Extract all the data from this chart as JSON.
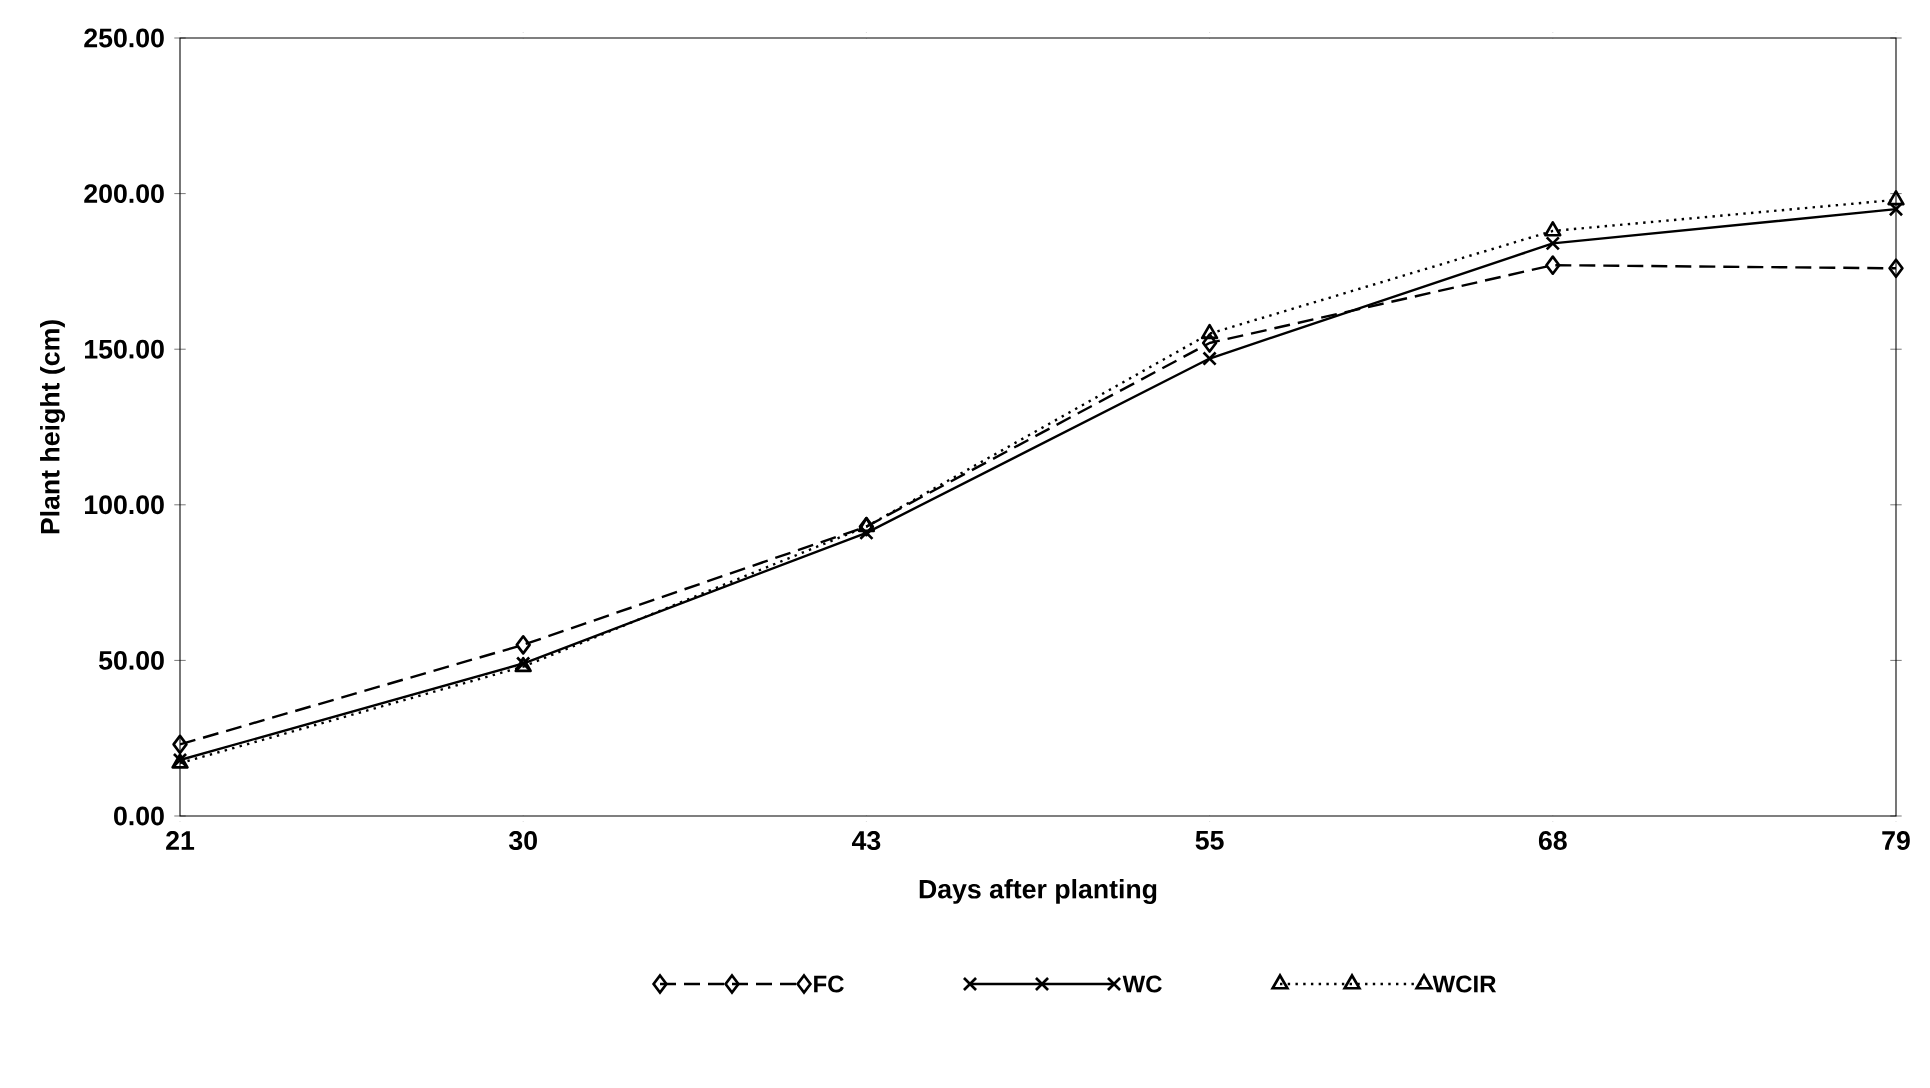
{
  "chart_data": {
    "type": "line",
    "xlabel": "Days after planting",
    "ylabel": "Plant height (cm)",
    "categories": [
      "21",
      "30",
      "43",
      "55",
      "68",
      "79"
    ],
    "series": [
      {
        "name": "FC",
        "color": "#000000",
        "marker": "diamond",
        "line_style": "dashed",
        "values": [
          23,
          55,
          93,
          152,
          177,
          176
        ]
      },
      {
        "name": "WC",
        "color": "#000000",
        "marker": "cross",
        "line_style": "solid",
        "values": [
          18,
          49,
          91,
          147,
          184,
          195
        ]
      },
      {
        "name": "WCIR",
        "color": "#000000",
        "marker": "triangle",
        "line_style": "dotted",
        "values": [
          17,
          48,
          93,
          155,
          188,
          198
        ]
      }
    ],
    "ylim": [
      0,
      250
    ],
    "yticks": [
      {
        "value": 0,
        "label": "0.00"
      },
      {
        "value": 50,
        "label": "50.00"
      },
      {
        "value": 100,
        "label": "100.00"
      },
      {
        "value": 150,
        "label": "150.00"
      },
      {
        "value": 200,
        "label": "200.00"
      },
      {
        "value": 250,
        "label": "250.00"
      }
    ],
    "grid": false,
    "legend": "bottom"
  }
}
